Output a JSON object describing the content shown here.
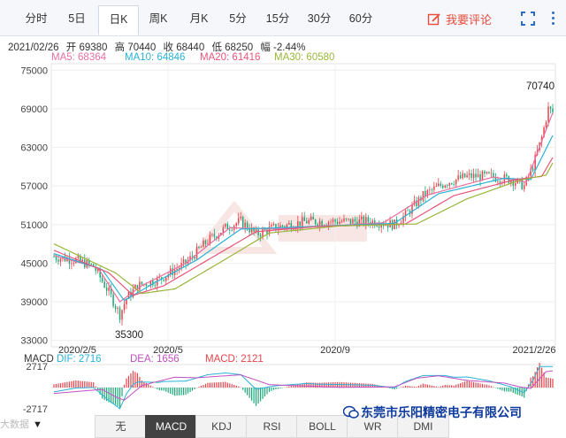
{
  "tabs": [
    "分时",
    "5日",
    "日K",
    "周K",
    "月K",
    "5分",
    "15分",
    "30分",
    "60分"
  ],
  "active_tab": "日K",
  "review_label": "我要评论",
  "icons": {
    "review": "edit-icon",
    "fullscreen": "fullscreen-icon",
    "more": "more-vertical-icon"
  },
  "colors": {
    "up": "#e8434a",
    "down": "#1aa878",
    "ma5": "#e86fa0",
    "ma10": "#27b2d6",
    "ma20": "#e8557a",
    "ma30": "#9ab53a",
    "accent": "#e84c3d"
  },
  "info": {
    "date": "2021/02/26",
    "open": "开 69380",
    "high": "高 70440",
    "close": "收 68440",
    "low": "低 68250",
    "change": "幅 -2.44%"
  },
  "ma_labels": {
    "ma5": "MA5: 68364",
    "ma10": "MA10: 64846",
    "ma20": "MA20: 61416",
    "ma30": "MA30: 60580"
  },
  "macd_labels": {
    "name": "MACD",
    "dif": "DIF: 2716",
    "dea": "DEA: 1656",
    "macd": "MACD: 2121"
  },
  "indicator_tabs": [
    "无",
    "MACD",
    "KDJ",
    "RSI",
    "BOLL",
    "WR",
    "DMI"
  ],
  "active_indicator": "MACD",
  "watermark": "东莞市乐阳精密电子有限公司",
  "corner_text": "大数据",
  "chart_data": {
    "type": "candlestick",
    "y_ticks": [
      75000,
      69000,
      63000,
      57000,
      51000,
      45000,
      39000,
      33000
    ],
    "ylim": [
      32000,
      76000
    ],
    "x_ticks": [
      "2020/2/5",
      "2020/5",
      "2020/9",
      "2021/2/26"
    ],
    "annotations": {
      "high": "70740",
      "low": "35300"
    },
    "price_path": [
      [
        0,
        46000
      ],
      [
        10,
        45500
      ],
      [
        18,
        44500
      ],
      [
        25,
        40500
      ],
      [
        30,
        37000
      ],
      [
        33,
        39500
      ],
      [
        38,
        41500
      ],
      [
        48,
        42500
      ],
      [
        60,
        45000
      ],
      [
        70,
        48500
      ],
      [
        78,
        50500
      ],
      [
        85,
        51500
      ],
      [
        92,
        49500
      ],
      [
        100,
        50500
      ],
      [
        115,
        51500
      ],
      [
        130,
        51500
      ],
      [
        145,
        51500
      ],
      [
        155,
        51000
      ],
      [
        160,
        52500
      ],
      [
        168,
        55500
      ],
      [
        178,
        57500
      ],
      [
        188,
        58500
      ],
      [
        198,
        58500
      ],
      [
        208,
        58000
      ],
      [
        214,
        57000
      ],
      [
        218,
        60000
      ],
      [
        222,
        64500
      ],
      [
        225,
        69000
      ],
      [
        227,
        68440
      ]
    ],
    "ma_path_points": {
      "ma5": [
        [
          0,
          46200
        ],
        [
          20,
          44300
        ],
        [
          30,
          39000
        ],
        [
          40,
          41500
        ],
        [
          60,
          45000
        ],
        [
          80,
          50500
        ],
        [
          100,
          50300
        ],
        [
          150,
          51300
        ],
        [
          170,
          55600
        ],
        [
          200,
          58400
        ],
        [
          215,
          57600
        ],
        [
          222,
          64000
        ],
        [
          227,
          68364
        ]
      ],
      "ma10": [
        [
          0,
          46500
        ],
        [
          22,
          44000
        ],
        [
          32,
          39200
        ],
        [
          45,
          41800
        ],
        [
          65,
          45500
        ],
        [
          85,
          50300
        ],
        [
          110,
          50600
        ],
        [
          155,
          51200
        ],
        [
          175,
          55800
        ],
        [
          205,
          58200
        ],
        [
          217,
          58000
        ],
        [
          227,
          64846
        ]
      ],
      "ma20": [
        [
          0,
          47000
        ],
        [
          25,
          43500
        ],
        [
          36,
          40000
        ],
        [
          50,
          41500
        ],
        [
          70,
          45500
        ],
        [
          92,
          49900
        ],
        [
          120,
          50700
        ],
        [
          160,
          51100
        ],
        [
          182,
          55500
        ],
        [
          210,
          58000
        ],
        [
          222,
          58500
        ],
        [
          227,
          61416
        ]
      ],
      "ma30": [
        [
          0,
          48000
        ],
        [
          28,
          43500
        ],
        [
          40,
          40300
        ],
        [
          55,
          41000
        ],
        [
          75,
          45000
        ],
        [
          98,
          49700
        ],
        [
          130,
          50800
        ],
        [
          165,
          51100
        ],
        [
          188,
          55000
        ],
        [
          212,
          57900
        ],
        [
          224,
          58700
        ],
        [
          227,
          60580
        ]
      ]
    },
    "macd": {
      "ylim": [
        -2717,
        2717
      ],
      "y_ticks": [
        2717,
        -2717
      ]
    }
  }
}
